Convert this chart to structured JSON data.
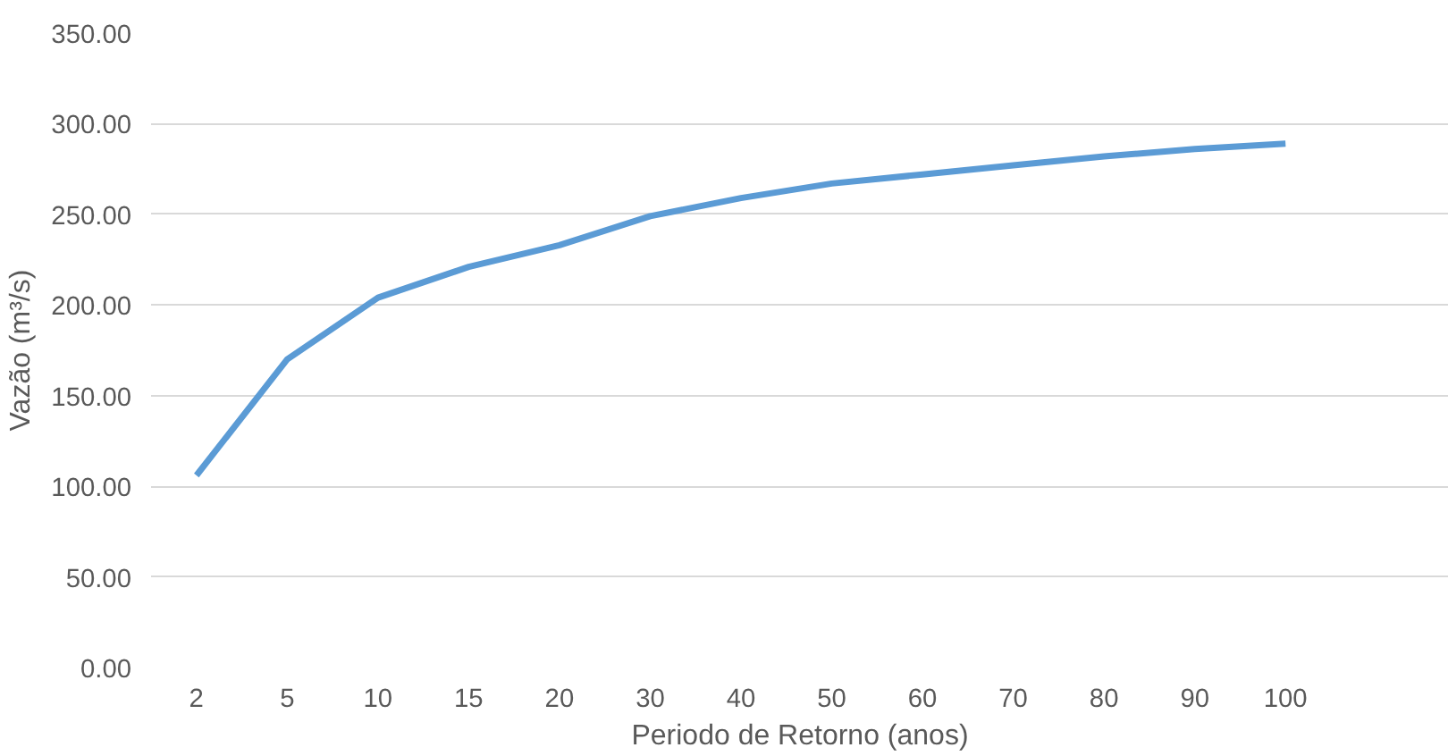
{
  "chart_data": {
    "type": "line",
    "xlabel": "Periodo de Retorno (anos)",
    "ylabel": "Vazão (m³/s)",
    "categories": [
      "2",
      "5",
      "10",
      "15",
      "20",
      "30",
      "40",
      "50",
      "60",
      "70",
      "80",
      "90",
      "100"
    ],
    "series": [
      {
        "color": "#5b9bd5",
        "values": [
          106,
          170,
          204,
          221,
          233,
          249,
          259,
          267,
          272,
          277,
          282,
          286,
          289
        ]
      }
    ],
    "ylim": [
      0,
      350
    ],
    "yticks": [
      {
        "value": 0,
        "label": "0.00"
      },
      {
        "value": 50,
        "label": "50.00"
      },
      {
        "value": 100,
        "label": "100.00"
      },
      {
        "value": 150,
        "label": "150.00"
      },
      {
        "value": 200,
        "label": "200.00"
      },
      {
        "value": 250,
        "label": "250.00"
      },
      {
        "value": 300,
        "label": "300.00"
      },
      {
        "value": 350,
        "label": "350.00"
      }
    ],
    "grid": "y",
    "marker": "none",
    "line_style": "solid"
  }
}
